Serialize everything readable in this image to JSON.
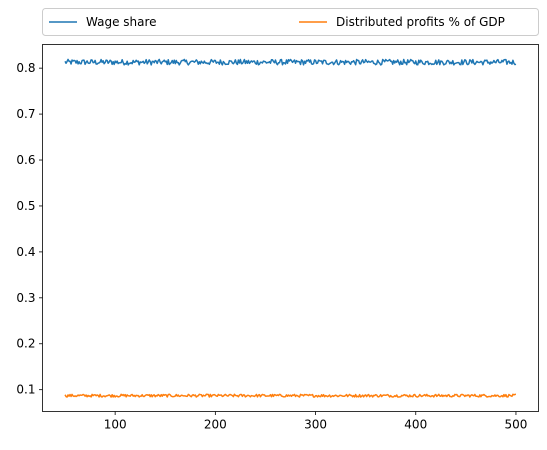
{
  "chart_data": {
    "type": "line",
    "title": "",
    "xlabel": "",
    "ylabel": "",
    "x_range": [
      50,
      500
    ],
    "xlim": [
      27.5,
      522.5
    ],
    "ylim": [
      0.0525,
      0.8515
    ],
    "x_ticks": [
      100,
      200,
      300,
      400,
      500
    ],
    "y_ticks": [
      0.1,
      0.2,
      0.3,
      0.4,
      0.5,
      0.6,
      0.7,
      0.8
    ],
    "x_tick_labels": [
      "100",
      "200",
      "300",
      "400",
      "500"
    ],
    "y_tick_labels": [
      "0.1",
      "0.2",
      "0.3",
      "0.4",
      "0.5",
      "0.6",
      "0.7",
      "0.8"
    ],
    "grid": false,
    "legend_position": "top, above plot, two columns",
    "series": [
      {
        "name": "Wage share",
        "color": "#1f77b4",
        "mean": 0.813,
        "noise_amplitude": 0.006
      },
      {
        "name": "Distributed profits % of GDP",
        "color": "#ff7f0e",
        "mean": 0.087,
        "noise_amplitude": 0.003
      }
    ]
  }
}
